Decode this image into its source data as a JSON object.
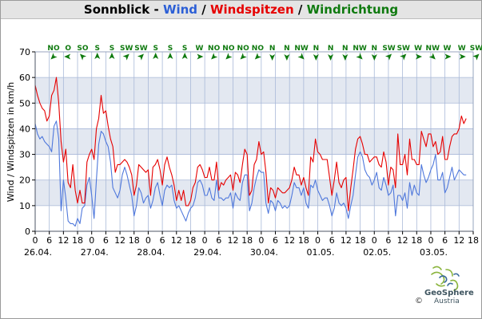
{
  "title": {
    "station": "Sonnblick",
    "sep1": " - ",
    "wind": "Wind",
    "sep2": " / ",
    "gusts": "Windspitzen",
    "sep3": " / ",
    "direction": "Windrichtung"
  },
  "colors": {
    "wind": "#4f78dc",
    "gusts": "#e60000",
    "direction": "#0f7a0f",
    "band": "#e3e8f1",
    "grid": "#a9b9d8",
    "title_bg": "#e4e4e4"
  },
  "logo": {
    "name": "GeoSphere",
    "sub": "Austria",
    "copyright": "©"
  },
  "chart_data": {
    "type": "line",
    "title": "Sonnblick - Wind / Windspitzen / Windrichtung",
    "ylabel": "Wind / Windspitzen in km/h",
    "xlabel": "",
    "ylim": [
      0,
      70
    ],
    "yticks": [
      0,
      10,
      20,
      30,
      40,
      50,
      60,
      70
    ],
    "xlim_hours": [
      0,
      186
    ],
    "x_tick_hours": [
      0,
      6,
      12,
      18
    ],
    "day_labels": [
      "26.04.",
      "27.04.",
      "28.04.",
      "29.04.",
      "30.04.",
      "01.05.",
      "02.05.",
      "03.05."
    ],
    "grid": true,
    "wind_directions": [
      "NO",
      "O",
      "SO",
      "S",
      "S",
      "SW",
      "SW",
      "S",
      "S",
      "S",
      "W",
      "NO",
      "NO",
      "NO",
      "NO",
      "N",
      "N",
      "NW",
      "N",
      "N",
      "N",
      "NW",
      "N",
      "SW",
      "SW",
      "W",
      "NW",
      "W",
      "W",
      "SW"
    ],
    "series": [
      {
        "name": "Wind",
        "x_hours": [
          0,
          1,
          2,
          3,
          4,
          5,
          6,
          7,
          8,
          9,
          10,
          11,
          12,
          13,
          14,
          15,
          16,
          17,
          18,
          19,
          20,
          21,
          22,
          23,
          24,
          25,
          26,
          27,
          28,
          29,
          30,
          31,
          32,
          33,
          34,
          35,
          36,
          37,
          38,
          39,
          40,
          41,
          42,
          43,
          44,
          45,
          46,
          47,
          48,
          49,
          50,
          51,
          52,
          53,
          54,
          55,
          56,
          57,
          58,
          59,
          60,
          61,
          62,
          63,
          64,
          65,
          66,
          67,
          68,
          69,
          70,
          71,
          72,
          73,
          74,
          75,
          76,
          77,
          78,
          79,
          80,
          81,
          82,
          83,
          84,
          85,
          86,
          87,
          88,
          89,
          90,
          91,
          92,
          93,
          94,
          95,
          96,
          97,
          98,
          99,
          100,
          101,
          102,
          103,
          104,
          105,
          106,
          107,
          108,
          109,
          110,
          111,
          112,
          113,
          114,
          115,
          116,
          117,
          118,
          119,
          120,
          121,
          122,
          123,
          124,
          125,
          126,
          127,
          128,
          129,
          130,
          131,
          132,
          133,
          134,
          135,
          136,
          137,
          138,
          139,
          140,
          141,
          142,
          143,
          144,
          145,
          146,
          147,
          148,
          149,
          150,
          151,
          152,
          153,
          154,
          155,
          156,
          157,
          158,
          159,
          160,
          161,
          162,
          163,
          164,
          165,
          166,
          167,
          168,
          169,
          170,
          171,
          172,
          173,
          174,
          175,
          176,
          177,
          178,
          179,
          180,
          181,
          182,
          183
        ],
        "values": [
          42,
          38,
          36,
          37,
          35,
          34,
          33,
          31,
          41,
          43,
          36,
          8,
          20,
          13,
          4,
          3,
          3,
          2,
          5,
          3,
          9,
          10,
          18,
          21,
          14,
          5,
          20,
          34,
          39,
          38,
          35,
          33,
          27,
          17,
          15,
          13,
          16,
          22,
          25,
          22,
          18,
          14,
          6,
          10,
          17,
          15,
          11,
          13,
          14,
          9,
          12,
          17,
          19,
          14,
          10,
          16,
          18,
          17,
          18,
          12,
          9,
          10,
          8,
          6,
          4,
          7,
          9,
          10,
          13,
          19,
          20,
          18,
          14,
          14,
          17,
          13,
          12,
          20,
          13,
          13,
          12,
          13,
          13,
          15,
          9,
          15,
          13,
          12,
          19,
          22,
          22,
          8,
          11,
          17,
          21,
          24,
          23,
          23,
          11,
          7,
          12,
          11,
          8,
          12,
          11,
          9,
          10,
          9,
          10,
          14,
          19,
          17,
          17,
          14,
          17,
          11,
          9,
          18,
          17,
          20,
          16,
          14,
          12,
          13,
          13,
          10,
          6,
          9,
          15,
          11,
          10,
          11,
          9,
          5,
          10,
          14,
          22,
          29,
          31,
          29,
          24,
          22,
          21,
          18,
          20,
          23,
          17,
          16,
          21,
          18,
          14,
          15,
          18,
          6,
          14,
          14,
          12,
          15,
          9,
          19,
          14,
          18,
          15,
          14,
          26,
          22,
          19,
          21,
          24,
          26,
          30,
          20,
          20,
          23,
          15,
          17,
          21,
          25,
          20,
          22,
          24,
          23,
          22,
          22
        ]
      },
      {
        "name": "Windspitzen",
        "x_hours": [
          0,
          1,
          2,
          3,
          4,
          5,
          6,
          7,
          8,
          9,
          10,
          11,
          12,
          13,
          14,
          15,
          16,
          17,
          18,
          19,
          20,
          21,
          22,
          23,
          24,
          25,
          26,
          27,
          28,
          29,
          30,
          31,
          32,
          33,
          34,
          35,
          36,
          37,
          38,
          39,
          40,
          41,
          42,
          43,
          44,
          45,
          46,
          47,
          48,
          49,
          50,
          51,
          52,
          53,
          54,
          55,
          56,
          57,
          58,
          59,
          60,
          61,
          62,
          63,
          64,
          65,
          66,
          67,
          68,
          69,
          70,
          71,
          72,
          73,
          74,
          75,
          76,
          77,
          78,
          79,
          80,
          81,
          82,
          83,
          84,
          85,
          86,
          87,
          88,
          89,
          90,
          91,
          92,
          93,
          94,
          95,
          96,
          97,
          98,
          99,
          100,
          101,
          102,
          103,
          104,
          105,
          106,
          107,
          108,
          109,
          110,
          111,
          112,
          113,
          114,
          115,
          116,
          117,
          118,
          119,
          120,
          121,
          122,
          123,
          124,
          125,
          126,
          127,
          128,
          129,
          130,
          131,
          132,
          133,
          134,
          135,
          136,
          137,
          138,
          139,
          140,
          141,
          142,
          143,
          144,
          145,
          146,
          147,
          148,
          149,
          150,
          151,
          152,
          153,
          154,
          155,
          156,
          157,
          158,
          159,
          160,
          161,
          162,
          163,
          164,
          165,
          166,
          167,
          168,
          169,
          170,
          171,
          172,
          173,
          174,
          175,
          176,
          177,
          178,
          179,
          180,
          181,
          182,
          183
        ],
        "values": [
          57,
          53,
          50,
          48,
          47,
          43,
          45,
          53,
          55,
          60,
          50,
          35,
          27,
          32,
          19,
          17,
          26,
          16,
          11,
          16,
          11,
          11,
          27,
          30,
          32,
          28,
          40,
          44,
          53,
          46,
          47,
          41,
          36,
          33,
          23,
          26,
          26,
          27,
          28,
          27,
          25,
          22,
          14,
          18,
          26,
          25,
          24,
          23,
          24,
          14,
          25,
          26,
          28,
          24,
          18,
          26,
          29,
          25,
          22,
          18,
          12,
          16,
          12,
          16,
          10,
          10,
          12,
          17,
          19,
          25,
          26,
          24,
          21,
          21,
          25,
          20,
          20,
          27,
          16,
          19,
          18,
          20,
          21,
          22,
          16,
          23,
          22,
          19,
          26,
          32,
          30,
          14,
          16,
          26,
          28,
          35,
          30,
          31,
          23,
          11,
          17,
          16,
          13,
          17,
          16,
          15,
          15,
          16,
          17,
          20,
          25,
          22,
          22,
          18,
          21,
          17,
          14,
          29,
          27,
          36,
          31,
          30,
          28,
          28,
          28,
          21,
          14,
          20,
          27,
          19,
          17,
          20,
          21,
          8,
          17,
          24,
          32,
          36,
          37,
          34,
          30,
          30,
          27,
          28,
          29,
          29,
          26,
          25,
          31,
          27,
          18,
          25,
          24,
          17,
          38,
          26,
          26,
          30,
          22,
          36,
          28,
          28,
          26,
          26,
          39,
          36,
          33,
          38,
          38,
          33,
          35,
          30,
          31,
          37,
          28,
          28,
          33,
          37,
          38,
          38,
          40,
          45,
          42,
          44
        ]
      }
    ]
  }
}
